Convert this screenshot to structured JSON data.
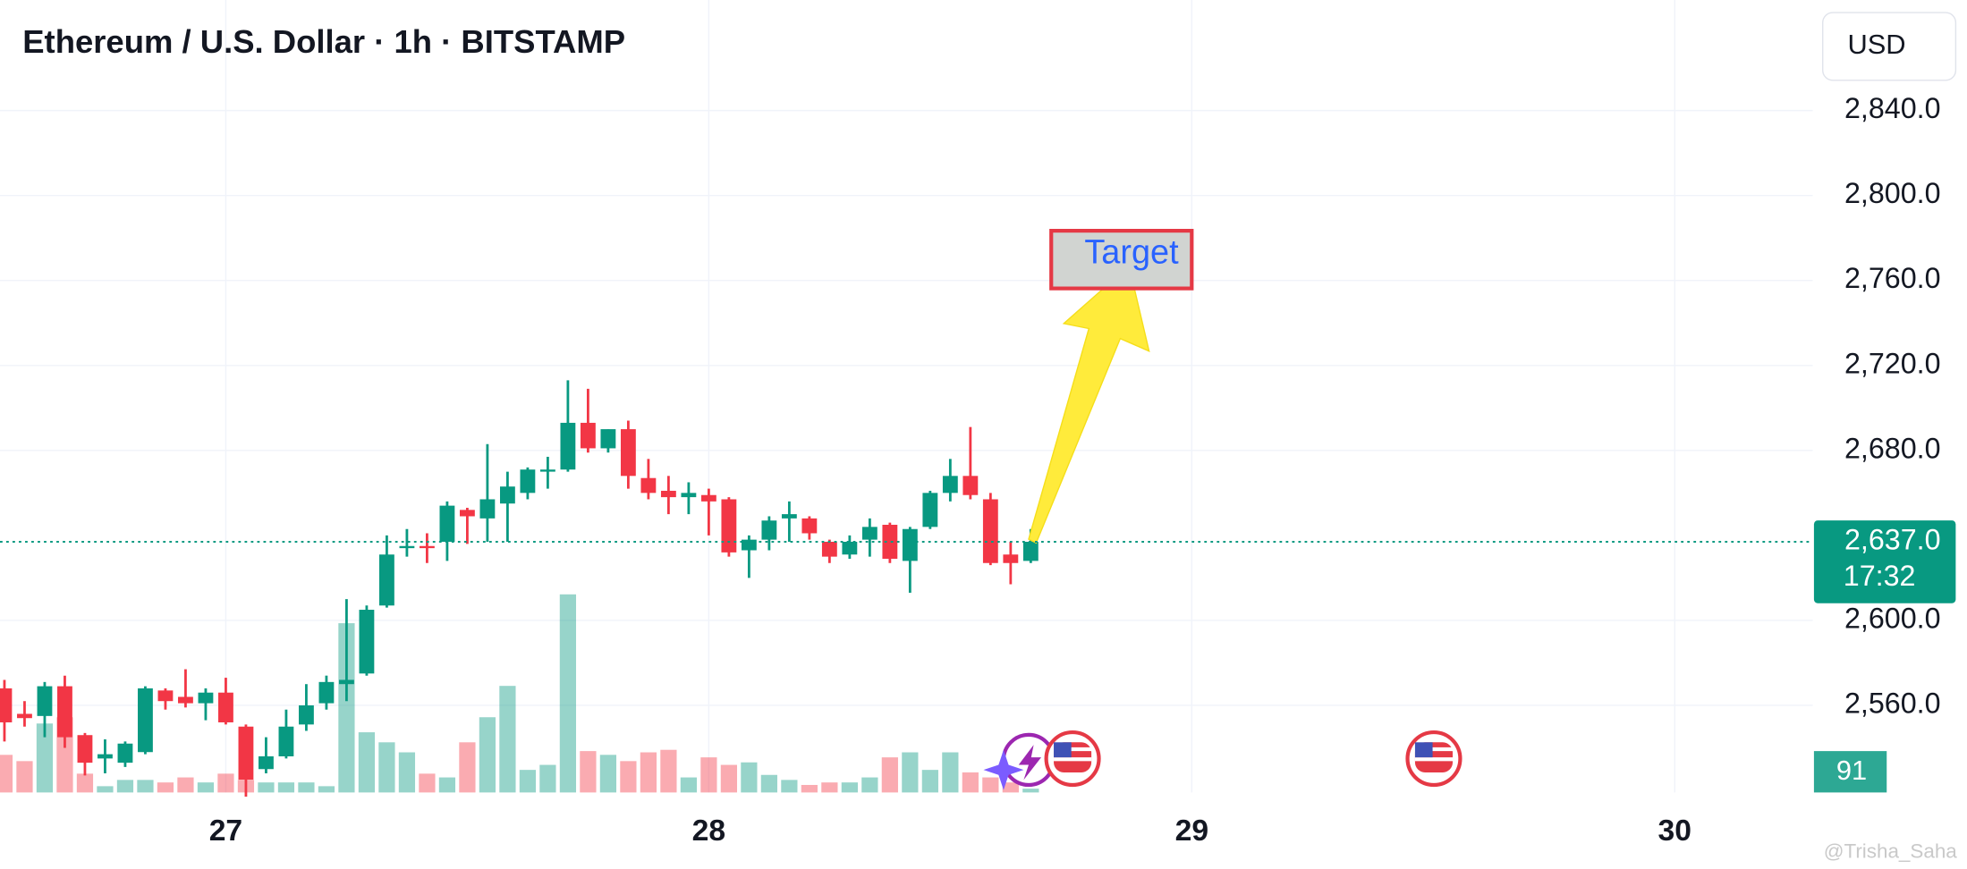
{
  "chart_data": {
    "type": "candlestick",
    "title": "Ethereum / U.S. Dollar · 1h · BITSTAMP",
    "currency": "USD",
    "categories": [
      null,
      null,
      null,
      null,
      null,
      null,
      null,
      null,
      null,
      null,
      null,
      "27",
      null,
      null,
      null,
      null,
      null,
      null,
      null,
      null,
      null,
      null,
      null,
      null,
      null,
      null,
      null,
      null,
      null,
      null,
      null,
      null,
      null,
      null,
      null,
      "28",
      null,
      null,
      null,
      null,
      null,
      null,
      null,
      null,
      null,
      null,
      null,
      null,
      null,
      null,
      null,
      null,
      null,
      null,
      null,
      null,
      null,
      null,
      null,
      "29",
      null,
      null,
      null,
      null,
      null,
      null,
      null,
      null,
      null,
      null,
      null,
      null,
      null,
      null,
      null,
      null,
      null,
      null,
      null,
      null,
      null,
      null,
      null,
      "30",
      null,
      null,
      null,
      null,
      null,
      null
    ],
    "open": [
      2568,
      2556,
      2555,
      2569,
      2546,
      2535,
      2533,
      2538,
      2567,
      2564,
      2561,
      2566,
      2550,
      2530,
      2536,
      2551,
      2561,
      2570,
      2575,
      2607,
      2634,
      2635,
      2637,
      2652,
      2648,
      2655,
      2660,
      2670,
      2671,
      2693,
      2681,
      2690,
      2667,
      2661,
      2658,
      2659,
      2657,
      2633,
      2638,
      2648,
      2648,
      2637,
      2631,
      2638,
      2645,
      2628,
      2644,
      2660,
      2668,
      2657,
      2631,
      2628,
      null,
      null,
      null,
      null,
      null,
      null,
      null,
      null,
      null,
      null,
      null,
      null,
      null,
      null,
      null,
      null,
      null,
      null,
      null,
      null,
      null,
      null,
      null,
      null,
      null,
      null,
      null,
      null,
      null,
      null,
      null,
      null,
      null,
      null,
      null,
      null,
      null,
      null
    ],
    "high": [
      2572,
      2562,
      2571,
      2574,
      2547,
      2544,
      2543,
      2569,
      2568,
      2577,
      2568,
      2573,
      2551,
      2545,
      2558,
      2570,
      2574,
      2610,
      2607,
      2640,
      2643,
      2641,
      2656,
      2653,
      2683,
      2670,
      2672,
      2677,
      2713,
      2709,
      2690,
      2694,
      2676,
      2668,
      2665,
      2662,
      2658,
      2640,
      2649,
      2656,
      2649,
      2638,
      2640,
      2648,
      2646,
      2644,
      2661,
      2676,
      2691,
      2660,
      2637,
      2643,
      null,
      null,
      null,
      null,
      null,
      null,
      null,
      null,
      null,
      null,
      null,
      null,
      null,
      null,
      null,
      null,
      null,
      null,
      null,
      null,
      null,
      null,
      null,
      null,
      null,
      null,
      null,
      null,
      null,
      null,
      null,
      null,
      null,
      null,
      null,
      null,
      null,
      null
    ],
    "low": [
      2543,
      2550,
      2545,
      2540,
      2527,
      2528,
      2531,
      2537,
      2558,
      2559,
      2553,
      2551,
      2517,
      2528,
      2535,
      2548,
      2558,
      2562,
      2574,
      2606,
      2630,
      2627,
      2628,
      2636,
      2637,
      2637,
      2657,
      2662,
      2670,
      2679,
      2679,
      2662,
      2657,
      2650,
      2650,
      2640,
      2630,
      2620,
      2633,
      2637,
      2638,
      2627,
      2629,
      2630,
      2627,
      2613,
      2643,
      2656,
      2657,
      2626,
      2617,
      2627,
      null,
      null,
      null,
      null,
      null,
      null,
      null,
      null,
      null,
      null,
      null,
      null,
      null,
      null,
      null,
      null,
      null,
      null,
      null,
      null,
      null,
      null,
      null,
      null,
      null,
      null,
      null,
      null,
      null,
      null,
      null,
      null,
      null,
      null,
      null,
      null,
      null,
      null
    ],
    "close": [
      2552,
      2554,
      2569,
      2545,
      2533,
      2537,
      2542,
      2568,
      2562,
      2561,
      2566,
      2552,
      2525,
      2536,
      2550,
      2560,
      2571,
      2572,
      2605,
      2631,
      2635,
      2634,
      2654,
      2649,
      2657,
      2663,
      2671,
      2671,
      2693,
      2681,
      2690,
      2668,
      2660,
      2658,
      2660,
      2656,
      2632,
      2638,
      2647,
      2650,
      2641,
      2630,
      2637,
      2644,
      2629,
      2643,
      2660,
      2668,
      2659,
      2627,
      2627,
      2637,
      null,
      null,
      null,
      null,
      null,
      null,
      null,
      null,
      null,
      null,
      null,
      null,
      null,
      null,
      null,
      null,
      null,
      null,
      null,
      null,
      null,
      null,
      null,
      null,
      null,
      null,
      null,
      null,
      null,
      null,
      null,
      null,
      null,
      null,
      null,
      null,
      null,
      null
    ],
    "volume": [
      900,
      750,
      1650,
      1800,
      450,
      150,
      300,
      300,
      240,
      360,
      240,
      450,
      300,
      240,
      240,
      240,
      150,
      4050,
      1440,
      1200,
      960,
      450,
      360,
      1200,
      1800,
      2550,
      540,
      660,
      4740,
      990,
      900,
      750,
      960,
      1020,
      360,
      840,
      660,
      720,
      420,
      300,
      180,
      240,
      240,
      360,
      840,
      960,
      540,
      960,
      480,
      360,
      240,
      91,
      null,
      null,
      null,
      null,
      null,
      null,
      null,
      null,
      null,
      null,
      null,
      null,
      null,
      null,
      null,
      null,
      null,
      null,
      null,
      null,
      null,
      null,
      null,
      null,
      null,
      null,
      null,
      null,
      null,
      null,
      null,
      null,
      null,
      null,
      null,
      null,
      null,
      null
    ],
    "ylim": [
      2519,
      2892
    ],
    "yticks": [
      {
        "value": 2560,
        "label": "2,560.0"
      },
      {
        "value": 2600,
        "label": "2,600.0"
      },
      {
        "value": 2680,
        "label": "2,680.0"
      },
      {
        "value": 2720,
        "label": "2,720.0"
      },
      {
        "value": 2760,
        "label": "2,760.0"
      },
      {
        "value": 2800,
        "label": "2,800.0"
      },
      {
        "value": 2840,
        "label": "2,840.0"
      }
    ],
    "current_price": {
      "value": 2637,
      "label": "2,637.0",
      "countdown": "17:32"
    },
    "up_color": "#089981",
    "down_color": "#f23645",
    "annotation": "Target",
    "watermark": "@Trisha_Saha",
    "grid": true
  }
}
